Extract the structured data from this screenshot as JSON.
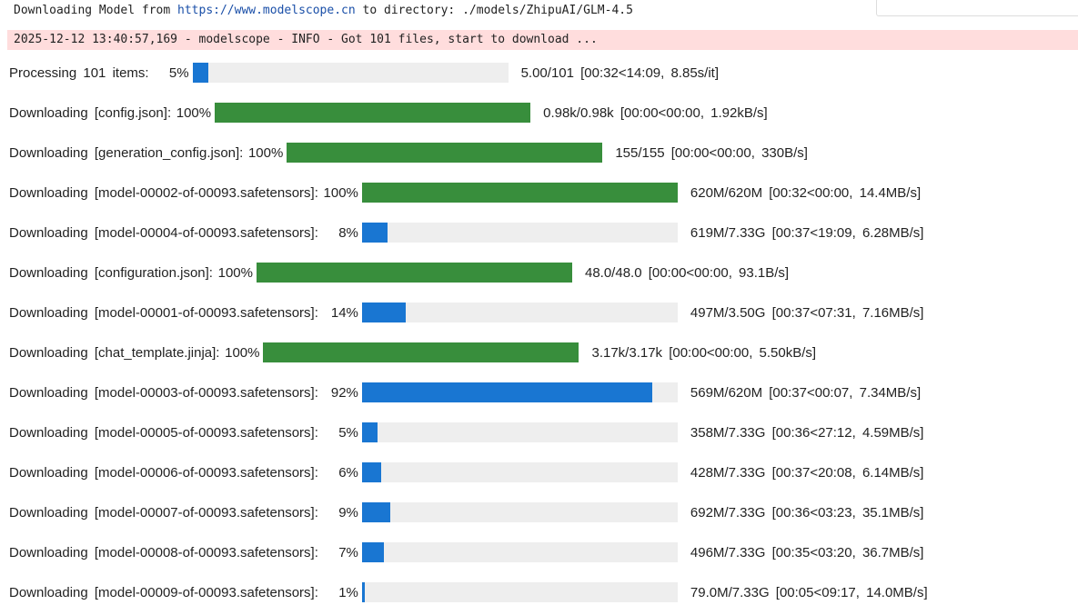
{
  "header": {
    "prefix": "Downloading Model from",
    "url": "https://www.modelscope.cn",
    "suffix": "to directory: ./models/ZhipuAI/GLM-4.5"
  },
  "log": "2025-12-12 13:40:57,169 - modelscope - INFO - Got 101 files, start to download ...",
  "rows": [
    {
      "label": "Processing 101 items:",
      "percent": 5,
      "percent_label": "5%",
      "stats": "5.00/101 [00:32<14:09, 8.85s/it]",
      "color": "#1976d2"
    },
    {
      "label": "Downloading [config.json]:",
      "percent": 100,
      "percent_label": "100%",
      "stats": "0.98k/0.98k [00:00<00:00, 1.92kB/s]",
      "color": "#388e3c"
    },
    {
      "label": "Downloading [generation_config.json]:",
      "percent": 100,
      "percent_label": "100%",
      "stats": "155/155 [00:00<00:00, 330B/s]",
      "color": "#388e3c"
    },
    {
      "label": "Downloading [model-00002-of-00093.safetensors]:",
      "percent": 100,
      "percent_label": "100%",
      "stats": "620M/620M [00:32<00:00, 14.4MB/s]",
      "color": "#388e3c"
    },
    {
      "label": "Downloading [model-00004-of-00093.safetensors]:",
      "percent": 8,
      "percent_label": "8%",
      "stats": "619M/7.33G [00:37<19:09, 6.28MB/s]",
      "color": "#1976d2"
    },
    {
      "label": "Downloading [configuration.json]:",
      "percent": 100,
      "percent_label": "100%",
      "stats": "48.0/48.0 [00:00<00:00, 93.1B/s]",
      "color": "#388e3c"
    },
    {
      "label": "Downloading [model-00001-of-00093.safetensors]:",
      "percent": 14,
      "percent_label": "14%",
      "stats": "497M/3.50G [00:37<07:31, 7.16MB/s]",
      "color": "#1976d2"
    },
    {
      "label": "Downloading [chat_template.jinja]:",
      "percent": 100,
      "percent_label": "100%",
      "stats": "3.17k/3.17k [00:00<00:00, 5.50kB/s]",
      "color": "#388e3c"
    },
    {
      "label": "Downloading [model-00003-of-00093.safetensors]:",
      "percent": 92,
      "percent_label": "92%",
      "stats": "569M/620M [00:37<00:07, 7.34MB/s]",
      "color": "#1976d2"
    },
    {
      "label": "Downloading [model-00005-of-00093.safetensors]:",
      "percent": 5,
      "percent_label": "5%",
      "stats": "358M/7.33G [00:36<27:12, 4.59MB/s]",
      "color": "#1976d2"
    },
    {
      "label": "Downloading [model-00006-of-00093.safetensors]:",
      "percent": 6,
      "percent_label": "6%",
      "stats": "428M/7.33G [00:37<20:08, 6.14MB/s]",
      "color": "#1976d2"
    },
    {
      "label": "Downloading [model-00007-of-00093.safetensors]:",
      "percent": 9,
      "percent_label": "9%",
      "stats": "692M/7.33G [00:36<03:23, 35.1MB/s]",
      "color": "#1976d2"
    },
    {
      "label": "Downloading [model-00008-of-00093.safetensors]:",
      "percent": 7,
      "percent_label": "7%",
      "stats": "496M/7.33G [00:35<03:20, 36.7MB/s]",
      "color": "#1976d2"
    },
    {
      "label": "Downloading [model-00009-of-00093.safetensors]:",
      "percent": 1,
      "percent_label": "1%",
      "stats": "79.0M/7.33G [00:05<09:17, 14.0MB/s]",
      "color": "#1976d2"
    }
  ]
}
